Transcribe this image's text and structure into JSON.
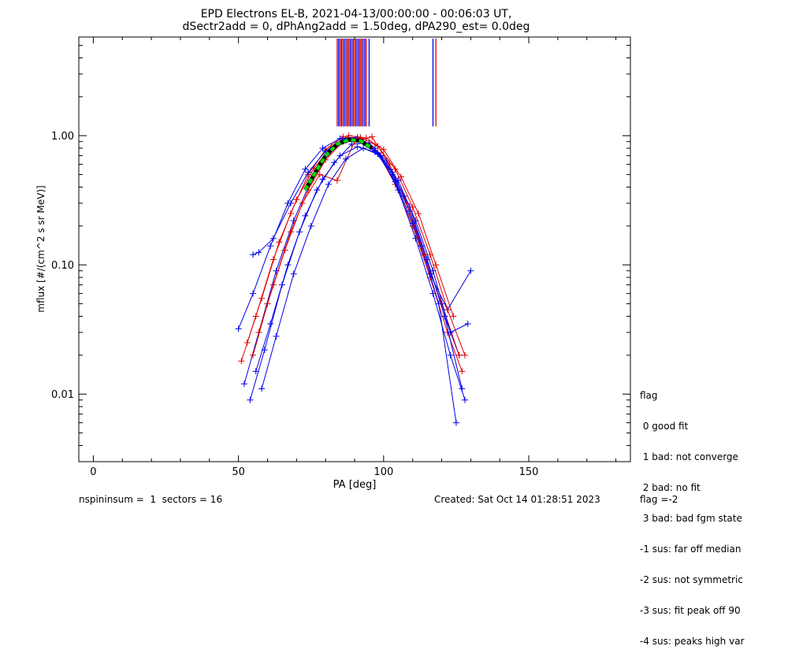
{
  "title_line1": "EPD Electrons EL-B, 2021-04-13/00:00:00 - 00:06:03 UT,",
  "title_line2": "dSectr2add = 0, dPhAng2add = 1.50deg, dPA290_est=    0.0deg",
  "legend": {
    "title": "flag",
    "items": [
      " 0 good fit",
      " 1 bad: not converge",
      " 2 bad: no fit",
      " 3 bad: bad fgm state",
      "-1 sus: far off median",
      "-2 sus: not symmetric",
      "-3 sus: fit peak off 90",
      "-4 sus: peaks high var"
    ]
  },
  "footer": {
    "left": "nspininsum =  1  sectors = 16",
    "created": "Created: Sat Oct 14 01:28:51 2023",
    "flag": "flag =-2"
  },
  "colors": {
    "red": "#e00000",
    "blue": "#0000e6",
    "fit": "#00dd00",
    "axis": "#000000"
  },
  "chart_data": {
    "type": "line",
    "xlabel": "PA [deg]",
    "ylabel": "mflux [#/(cm^2 s sr MeV)]",
    "xlim": [
      -5,
      185
    ],
    "ylim": [
      0.003,
      5.8
    ],
    "yscale": "log",
    "xticks": [
      0,
      50,
      100,
      150
    ],
    "xtick_labels": [
      "0",
      "50",
      "100",
      "150"
    ],
    "yticks": [
      0.01,
      0.1,
      1.0
    ],
    "ytick_labels": [
      "0.01",
      "0.10",
      "1.00"
    ],
    "grid": false,
    "series": [
      {
        "color": "red",
        "x": [
          51,
          56,
          62,
          68,
          74,
          80,
          86,
          92,
          98,
          104,
          110,
          116,
          122,
          127
        ],
        "y": [
          0.018,
          0.04,
          0.11,
          0.25,
          0.5,
          0.78,
          0.98,
          0.95,
          0.74,
          0.42,
          0.2,
          0.08,
          0.03,
          0.015
        ]
      },
      {
        "color": "blue",
        "x": [
          52,
          57,
          63,
          69,
          75,
          81,
          87,
          93,
          99,
          105,
          111,
          117,
          123,
          128
        ],
        "y": [
          0.012,
          0.03,
          0.09,
          0.22,
          0.45,
          0.72,
          0.92,
          0.9,
          0.7,
          0.38,
          0.16,
          0.06,
          0.02,
          0.009
        ]
      },
      {
        "color": "red",
        "x": [
          53,
          58,
          64,
          70,
          76,
          82,
          88,
          94,
          100,
          106,
          112,
          118,
          124
        ],
        "y": [
          0.025,
          0.055,
          0.15,
          0.32,
          0.56,
          0.82,
          1.0,
          0.96,
          0.78,
          0.48,
          0.25,
          0.1,
          0.04
        ]
      },
      {
        "color": "blue",
        "x": [
          54,
          59,
          65,
          71,
          77,
          83,
          89,
          95,
          101,
          107,
          113,
          119,
          125
        ],
        "y": [
          0.009,
          0.022,
          0.07,
          0.18,
          0.38,
          0.62,
          0.86,
          0.88,
          0.64,
          0.34,
          0.14,
          0.05,
          0.006
        ]
      },
      {
        "color": "blue",
        "x": [
          50,
          55,
          61,
          67,
          73,
          79,
          85,
          91,
          97,
          103,
          109,
          115,
          121,
          126
        ],
        "y": [
          0.032,
          0.06,
          0.14,
          0.3,
          0.55,
          0.8,
          0.95,
          0.97,
          0.8,
          0.5,
          0.26,
          0.11,
          0.04,
          0.02
        ]
      },
      {
        "color": "red",
        "x": [
          55,
          60,
          66,
          72,
          78,
          84,
          90,
          96,
          102,
          108,
          114,
          120,
          126
        ],
        "y": [
          0.02,
          0.05,
          0.13,
          0.3,
          0.5,
          0.45,
          0.9,
          0.98,
          0.6,
          0.3,
          0.12,
          0.05,
          0.02
        ]
      },
      {
        "color": "blue",
        "x": [
          56,
          61,
          67,
          73,
          79,
          85,
          91,
          97,
          103,
          109,
          115,
          121,
          127
        ],
        "y": [
          0.015,
          0.035,
          0.1,
          0.24,
          0.46,
          0.7,
          0.82,
          0.75,
          0.52,
          0.28,
          0.11,
          0.04,
          0.011
        ]
      },
      {
        "color": "blue",
        "x": [
          55,
          57,
          62,
          68,
          74,
          80,
          86,
          92,
          98,
          104,
          110,
          116,
          122,
          130
        ],
        "y": [
          0.12,
          0.125,
          0.16,
          0.3,
          0.52,
          0.76,
          0.94,
          0.93,
          0.72,
          0.44,
          0.21,
          0.085,
          0.045,
          0.09
        ]
      },
      {
        "color": "red",
        "x": [
          57,
          62,
          68,
          74,
          80,
          86,
          92,
          98,
          104,
          110,
          116,
          122,
          128
        ],
        "y": [
          0.03,
          0.07,
          0.18,
          0.38,
          0.65,
          0.9,
          0.97,
          0.83,
          0.55,
          0.28,
          0.12,
          0.045,
          0.02
        ]
      },
      {
        "color": "blue",
        "x": [
          58,
          63,
          69,
          75,
          81,
          87,
          93,
          99,
          105,
          111,
          117,
          123,
          129
        ],
        "y": [
          0.011,
          0.028,
          0.085,
          0.2,
          0.42,
          0.66,
          0.8,
          0.7,
          0.45,
          0.22,
          0.09,
          0.03,
          0.035
        ]
      }
    ],
    "fit": {
      "color": "fit",
      "x": [
        73,
        76,
        80,
        84,
        88,
        92,
        96
      ],
      "y": [
        0.38,
        0.5,
        0.7,
        0.86,
        0.93,
        0.91,
        0.8
      ]
    },
    "vlines_red": [
      84,
      85,
      86,
      87,
      88,
      89,
      90,
      91,
      92,
      93,
      94,
      118
    ],
    "vlines_blue": [
      84.5,
      85.5,
      86.5,
      87.5,
      88.5,
      89.5,
      90.5,
      91.5,
      92.5,
      93.5,
      95,
      117
    ]
  }
}
